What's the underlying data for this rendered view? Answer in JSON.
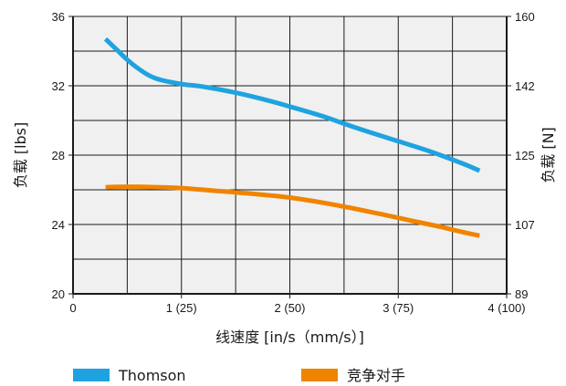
{
  "chart_data": {
    "type": "line",
    "xlabel": "线速度 [in/s（mm/s）]",
    "ylabel_left": "负载 [lbs]",
    "ylabel_right": "负载 [N]",
    "xlim": [
      0,
      4
    ],
    "ylim_left": [
      20,
      36
    ],
    "ylim_right": [
      89,
      160
    ],
    "x_ticks": [
      {
        "value": 0,
        "label": "0"
      },
      {
        "value": 1,
        "label": "1 (25)"
      },
      {
        "value": 2,
        "label": "2 (50)"
      },
      {
        "value": 3,
        "label": "3 (75)"
      },
      {
        "value": 4,
        "label": "4 (100)"
      }
    ],
    "y_ticks_left": [
      {
        "value": 20,
        "label": "20"
      },
      {
        "value": 24,
        "label": "24"
      },
      {
        "value": 28,
        "label": "28"
      },
      {
        "value": 32,
        "label": "32"
      },
      {
        "value": 36,
        "label": "36"
      }
    ],
    "y_ticks_right": [
      {
        "value": 89,
        "label": "89"
      },
      {
        "value": 107,
        "label": "107"
      },
      {
        "value": 125,
        "label": "125"
      },
      {
        "value": 142,
        "label": "142"
      },
      {
        "value": 160,
        "label": "160"
      }
    ],
    "grid": true,
    "legend_position": "bottom",
    "series": [
      {
        "name": "Thomson",
        "color": "#1fa3e0",
        "x": [
          0.3,
          0.4,
          0.5,
          0.6,
          0.7,
          0.8,
          1.0,
          1.2,
          1.5,
          1.8,
          2.0,
          2.3,
          2.6,
          3.0,
          3.3,
          3.6,
          3.75
        ],
        "y": [
          34.7,
          34.1,
          33.5,
          33.0,
          32.6,
          32.35,
          32.1,
          31.95,
          31.6,
          31.15,
          30.8,
          30.25,
          29.6,
          28.8,
          28.2,
          27.5,
          27.1
        ]
      },
      {
        "name": "竞争对手",
        "color": "#f08400",
        "x": [
          0.3,
          0.5,
          0.8,
          1.0,
          1.3,
          1.6,
          2.0,
          2.4,
          2.8,
          3.1,
          3.4,
          3.6,
          3.75
        ],
        "y": [
          26.15,
          26.18,
          26.15,
          26.1,
          25.95,
          25.8,
          25.55,
          25.15,
          24.65,
          24.25,
          23.85,
          23.55,
          23.35
        ]
      }
    ]
  }
}
